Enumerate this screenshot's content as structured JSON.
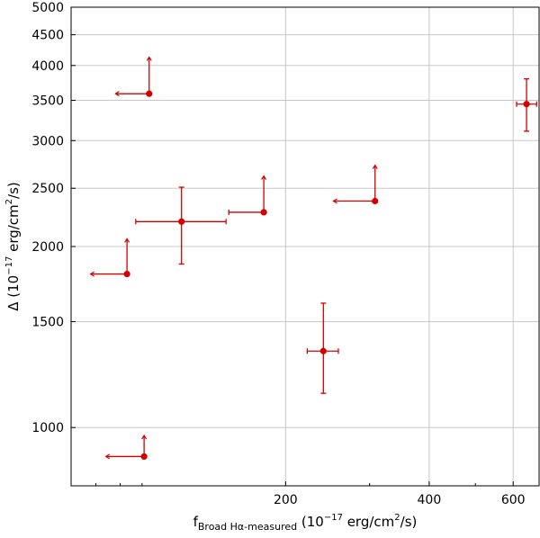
{
  "chart_data": {
    "type": "scatter",
    "title": "",
    "xlabel": {
      "main": "f",
      "subscript": "Broad Hα-measured",
      "unit_prefix": " (10",
      "unit_exp": "−17",
      "unit_mid": " erg/cm",
      "unit_exp2": "2",
      "unit_suffix": "/s)"
    },
    "ylabel": {
      "main": "Δ",
      "unit_prefix": " (10",
      "unit_exp": "−17",
      "unit_mid": " erg/cm",
      "unit_exp2": "2",
      "unit_suffix": "/s)"
    },
    "xscale": "log",
    "yscale": "log",
    "xlim": [
      71,
      680
    ],
    "ylim": [
      800,
      5000
    ],
    "grid": true,
    "color": "#d40000",
    "x_ticks": [
      {
        "value": 200,
        "label": "200"
      },
      {
        "value": 400,
        "label": "400"
      },
      {
        "value": 600,
        "label": "600"
      }
    ],
    "y_ticks": [
      {
        "value": 1000,
        "label": "1000"
      },
      {
        "value": 1500,
        "label": "1500"
      },
      {
        "value": 2000,
        "label": "2000"
      },
      {
        "value": 2500,
        "label": "2500"
      },
      {
        "value": 3000,
        "label": "3000"
      },
      {
        "value": 3500,
        "label": "3500"
      },
      {
        "value": 4000,
        "label": "4000"
      },
      {
        "value": 4500,
        "label": "4500"
      },
      {
        "value": 5000,
        "label": "5000"
      }
    ],
    "points": [
      {
        "x": 103.5,
        "y": 3590,
        "x_upper_limit": 88,
        "y_lower_limit": 4130
      },
      {
        "x": 93,
        "y": 1800,
        "x_upper_limit": 78,
        "y_lower_limit": 2060
      },
      {
        "x": 101,
        "y": 895,
        "x_upper_limit": 84,
        "y_lower_limit": 970
      },
      {
        "x": 121,
        "y": 2200,
        "x_err": [
          97,
          150
        ],
        "y_err": [
          1870,
          2510
        ]
      },
      {
        "x": 180,
        "y": 2280,
        "x_err": [
          152,
          180
        ],
        "y_lower_limit": 2620
      },
      {
        "x": 308,
        "y": 2380,
        "x_upper_limit": 252,
        "y_lower_limit": 2730
      },
      {
        "x": 240,
        "y": 1340,
        "x_err": [
          222,
          258
        ],
        "y_err": [
          1140,
          1610
        ]
      },
      {
        "x": 640,
        "y": 3450,
        "x_err": [
          610,
          672
        ],
        "y_err": [
          3110,
          3800
        ]
      }
    ]
  }
}
